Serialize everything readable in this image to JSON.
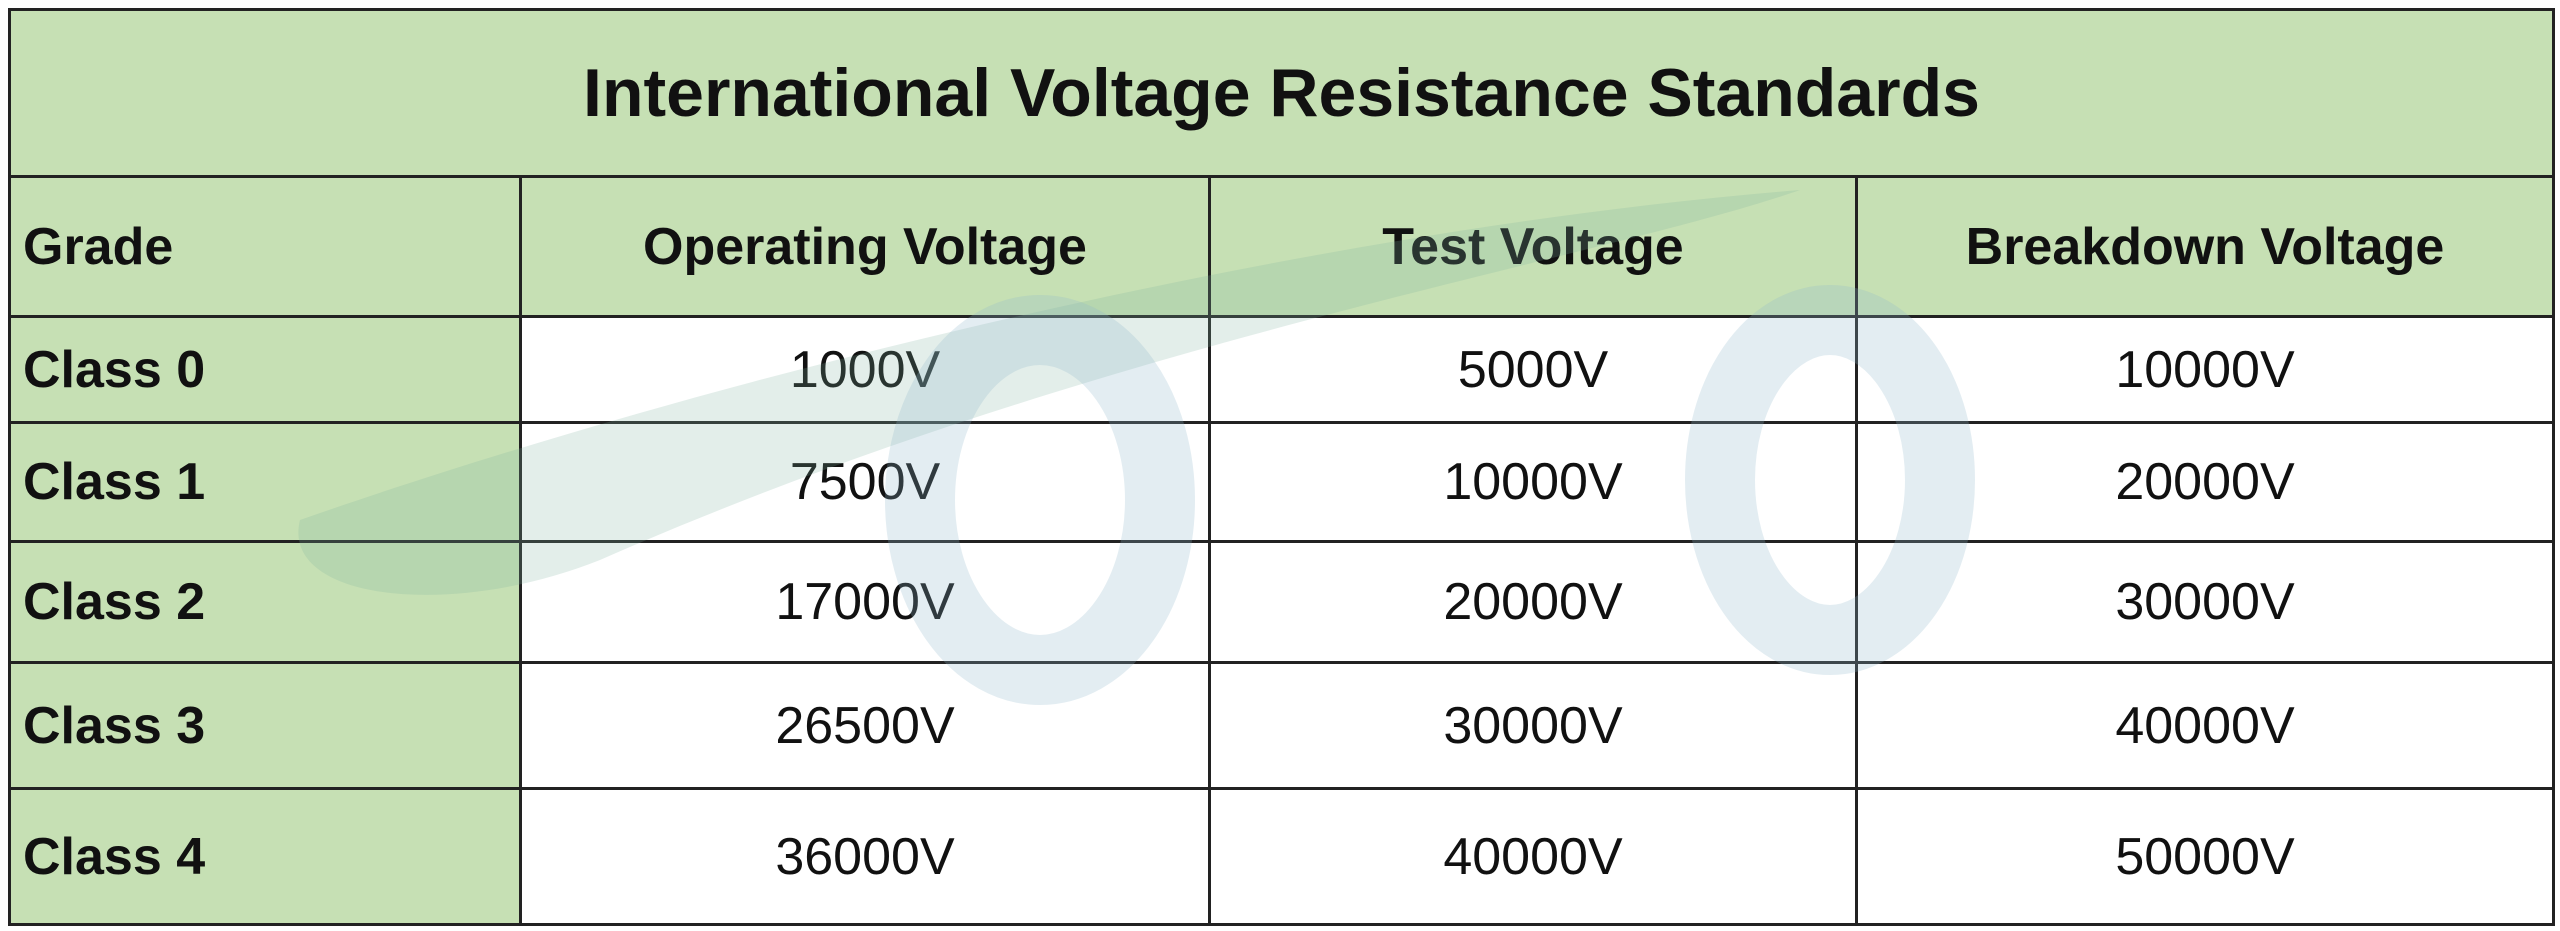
{
  "table": {
    "title": "International Voltage Resistance Standards",
    "header": [
      "Grade",
      "Operating Voltage",
      "Test Voltage",
      "Breakdown Voltage"
    ],
    "rows": [
      [
        "Class 0",
        "1000V",
        "5000V",
        "10000V"
      ],
      [
        "Class 1",
        "7500V",
        "10000V",
        "20000V"
      ],
      [
        "Class 2",
        "17000V",
        "20000V",
        "30000V"
      ],
      [
        "Class 3",
        "26500V",
        "30000V",
        "40000V"
      ],
      [
        "Class 4",
        "36000V",
        "40000V",
        "50000V"
      ]
    ]
  }
}
